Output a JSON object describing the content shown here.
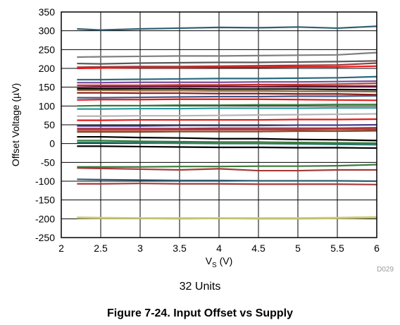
{
  "chart_data": {
    "type": "line",
    "title": "",
    "xlabel": "V",
    "xlabel_sub": "S",
    "xlabel_unit": " (V)",
    "ylabel": "Offset Voltage (µV)",
    "xlim": [
      2,
      6
    ],
    "ylim": [
      -250,
      350
    ],
    "x_ticks": [
      2,
      2.5,
      3,
      3.5,
      4,
      4.5,
      5,
      5.5,
      6
    ],
    "x_tick_labels": [
      "2",
      "2.5",
      "3",
      "3.5",
      "4",
      "4.5",
      "5",
      "5.5",
      "6"
    ],
    "y_ticks": [
      -250,
      -200,
      -150,
      -100,
      -50,
      0,
      50,
      100,
      150,
      200,
      250,
      300,
      350
    ],
    "y_tick_labels": [
      "-250",
      "-200",
      "-150",
      "-100",
      "-50",
      "0",
      "50",
      "100",
      "150",
      "200",
      "250",
      "300",
      "350"
    ],
    "grid": true,
    "legend": "none",
    "x": [
      2.2,
      2.5,
      3,
      3.5,
      4,
      4.5,
      5,
      5.5,
      6
    ],
    "series": [
      {
        "color": "#2e5f73",
        "values": [
          305,
          302,
          305,
          307,
          309,
          308,
          310,
          307,
          312
        ]
      },
      {
        "color": "#7f7f7f",
        "values": [
          230,
          231,
          232,
          233,
          233,
          234,
          235,
          236,
          242
        ]
      },
      {
        "color": "#5a5a5a",
        "values": [
          213,
          212,
          214,
          215,
          216,
          216,
          217,
          218,
          220
        ]
      },
      {
        "color": "#9e3a3a",
        "values": [
          203,
          204,
          205,
          205,
          206,
          207,
          208,
          209,
          214
        ]
      },
      {
        "color": "#e41a1a",
        "values": [
          200,
          201,
          202,
          202,
          203,
          203,
          204,
          204,
          206
        ]
      },
      {
        "color": "#2a6b80",
        "values": [
          170,
          170,
          171,
          172,
          173,
          173,
          174,
          175,
          178
        ]
      },
      {
        "color": "#7a4e9a",
        "values": [
          162,
          162,
          163,
          163,
          163,
          164,
          164,
          165,
          166
        ]
      },
      {
        "color": "#c0392b",
        "values": [
          155,
          155,
          155,
          156,
          156,
          157,
          157,
          158,
          160
        ]
      },
      {
        "color": "#7a1e4a",
        "values": [
          150,
          151,
          151,
          152,
          152,
          152,
          153,
          153,
          153
        ]
      },
      {
        "color": "#000000",
        "values": [
          146,
          146,
          146,
          146,
          145,
          145,
          145,
          144,
          143
        ]
      },
      {
        "color": "#8b6a3a",
        "values": [
          142,
          142,
          141,
          141,
          140,
          140,
          139,
          139,
          138
        ]
      },
      {
        "color": "#8b1a1a",
        "values": [
          135,
          135,
          134,
          134,
          133,
          133,
          132,
          132,
          130
        ]
      },
      {
        "color": "#3f5a8a",
        "values": [
          122,
          122,
          123,
          124,
          125,
          125,
          126,
          126,
          127
        ]
      },
      {
        "color": "#e41a1a",
        "values": [
          116,
          117,
          117,
          118,
          118,
          118,
          117,
          116,
          115
        ]
      },
      {
        "color": "#3a7a3a",
        "values": [
          100,
          101,
          101,
          102,
          102,
          103,
          103,
          104,
          104
        ]
      },
      {
        "color": "#2a9a9a",
        "values": [
          92,
          92,
          93,
          93,
          94,
          94,
          94,
          95,
          95
        ]
      },
      {
        "color": "#b5b5b5",
        "values": [
          73,
          73,
          74,
          74,
          75,
          76,
          77,
          78,
          79
        ]
      },
      {
        "color": "#e41a1a",
        "values": [
          62,
          62,
          63,
          63,
          63,
          63,
          64,
          64,
          65
        ]
      },
      {
        "color": "#4a3a8a",
        "values": [
          47,
          47,
          47,
          48,
          48,
          48,
          49,
          49,
          50
        ]
      },
      {
        "color": "#a0304a",
        "values": [
          40,
          40,
          40,
          40,
          41,
          41,
          41,
          41,
          42
        ]
      },
      {
        "color": "#c0392b",
        "values": [
          36,
          36,
          36,
          37,
          37,
          37,
          37,
          38,
          38
        ]
      },
      {
        "color": "#7a4a2a",
        "values": [
          31,
          31,
          31,
          32,
          32,
          32,
          33,
          33,
          34
        ]
      },
      {
        "color": "#000000",
        "values": [
          18,
          18,
          16,
          15,
          13,
          13,
          11,
          10,
          8
        ]
      },
      {
        "color": "#3a7a3a",
        "values": [
          8,
          8,
          6,
          5,
          4,
          4,
          3,
          2,
          1
        ]
      },
      {
        "color": "#2a7a6a",
        "values": [
          3,
          3,
          2,
          1,
          0,
          0,
          -1,
          -2,
          -3
        ]
      },
      {
        "color": "#000000",
        "values": [
          -7,
          -7,
          -8,
          -9,
          -10,
          -10,
          -11,
          -11,
          -12
        ]
      },
      {
        "color": "#3a7a3a",
        "values": [
          -62,
          -62,
          -62,
          -61,
          -61,
          -60,
          -60,
          -59,
          -56
        ]
      },
      {
        "color": "#a33a3a",
        "values": [
          -65,
          -66,
          -68,
          -70,
          -67,
          -72,
          -72,
          -70,
          -70
        ]
      },
      {
        "color": "#2e5f73",
        "values": [
          -95,
          -96,
          -97,
          -98,
          -98,
          -99,
          -99,
          -99,
          -100
        ]
      },
      {
        "color": "#a33a3a",
        "values": [
          -107,
          -107,
          -106,
          -107,
          -107,
          -108,
          -108,
          -108,
          -109
        ]
      },
      {
        "color": "#b8b860",
        "values": [
          -198,
          -199,
          -199,
          -200,
          -199,
          -200,
          -200,
          -199,
          -197
        ]
      },
      {
        "color": "#c9c97a",
        "values": [
          -196,
          -197,
          -198,
          -198,
          -198,
          -198,
          -198,
          -197,
          -195
        ]
      }
    ]
  },
  "figure_code": "D029",
  "note": "32 Units",
  "caption": "Figure 7-24. Input Offset vs Supply"
}
